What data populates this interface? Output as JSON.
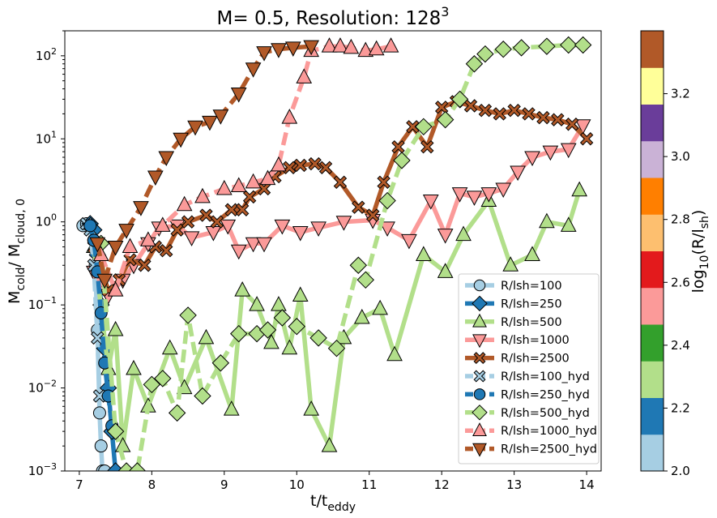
{
  "chart_data": {
    "type": "line",
    "title": {
      "base": "M= 0.5, Resolution: 128",
      "sup": "3"
    },
    "xlabel": {
      "main": "t/t",
      "sub": "eddy"
    },
    "ylabel": {
      "main": "M",
      "sub1": "cold",
      "mid": "/ M",
      "sub2": "cloud, 0"
    },
    "xlim": [
      6.8,
      14.2
    ],
    "ylim": [
      0.001,
      200
    ],
    "yscale": "log",
    "xticks": [
      "7",
      "8",
      "9",
      "10",
      "11",
      "12",
      "13",
      "14"
    ],
    "yticks": [
      {
        "value": 0.001,
        "base": "10",
        "exp": "−3"
      },
      {
        "value": 0.01,
        "base": "10",
        "exp": "−2"
      },
      {
        "value": 0.1,
        "base": "10",
        "exp": "−1"
      },
      {
        "value": 1,
        "base": "10",
        "exp": "0"
      },
      {
        "value": 10,
        "base": "10",
        "exp": "1"
      },
      {
        "value": 100,
        "base": "10",
        "exp": "2"
      }
    ],
    "legend_position": "lower-right",
    "colorbar": {
      "label": {
        "main": "log",
        "sub": "10",
        "rest": "(R/l",
        "sub2": "sh",
        "end": ")"
      },
      "range": [
        2.0,
        3.4
      ],
      "colors": [
        "#a6cee3",
        "#1f78b4",
        "#b2df8a",
        "#33a02c",
        "#fb9a99",
        "#e31a1c",
        "#fdbf6f",
        "#ff7f00",
        "#cab2d6",
        "#6a3d9a",
        "#ffff99",
        "#b15928"
      ],
      "ticks": [
        "2.0",
        "2.2",
        "2.4",
        "2.6",
        "2.8",
        "3.0",
        "3.2"
      ]
    },
    "series": [
      {
        "name": "R/lsh=100",
        "color": "#a6cee3",
        "marker": "circle",
        "dash": "solid",
        "x": [
          7.05,
          7.1,
          7.15,
          7.2,
          7.22,
          7.25,
          7.28,
          7.3,
          7.32,
          7.35
        ],
        "y": [
          0.9,
          0.95,
          0.9,
          0.6,
          0.3,
          0.05,
          0.005,
          0.002,
          0.001,
          0.001
        ]
      },
      {
        "name": "R/lsh=250",
        "color": "#1f78b4",
        "marker": "diamond",
        "dash": "solid",
        "x": [
          7.15,
          7.2,
          7.25,
          7.3,
          7.35,
          7.4,
          7.45,
          7.5
        ],
        "y": [
          0.95,
          0.8,
          0.4,
          0.1,
          0.03,
          0.01,
          0.003,
          0.001
        ]
      },
      {
        "name": "R/lsh=500",
        "color": "#b2df8a",
        "marker": "triangle-up",
        "dash": "solid",
        "x": [
          7.2,
          7.4,
          7.5,
          7.6,
          7.75,
          7.95,
          8.25,
          8.45,
          8.75,
          9.1,
          9.25,
          9.45,
          9.65,
          9.75,
          9.9,
          10.05,
          10.2,
          10.45,
          10.65,
          10.9,
          11.15,
          11.35,
          11.75,
          12.05,
          12.3,
          12.65,
          12.95,
          13.25,
          13.45,
          13.75,
          13.9
        ],
        "y": [
          0.5,
          0.017,
          0.05,
          0.002,
          0.017,
          0.006,
          0.03,
          0.01,
          0.04,
          0.0055,
          0.15,
          0.1,
          0.035,
          0.1,
          0.03,
          0.13,
          0.0055,
          0.002,
          0.04,
          0.07,
          0.09,
          0.025,
          0.4,
          0.25,
          0.7,
          1.8,
          0.3,
          0.4,
          1.0,
          0.9,
          2.4
        ]
      },
      {
        "name": "R/lsh=1000",
        "color": "#fb9a99",
        "marker": "triangle-down",
        "dash": "solid",
        "x": [
          7.2,
          7.4,
          7.6,
          7.75,
          7.95,
          8.1,
          8.35,
          8.55,
          8.85,
          9.05,
          9.2,
          9.4,
          9.55,
          9.8,
          10.05,
          10.3,
          10.65,
          11.05,
          11.25,
          11.55,
          11.85,
          12.05,
          12.25,
          12.45,
          12.65,
          12.85,
          13.05,
          13.25,
          13.5,
          13.75,
          13.95
        ],
        "y": [
          0.25,
          0.13,
          0.2,
          0.3,
          0.55,
          0.85,
          0.9,
          0.65,
          0.75,
          0.9,
          0.45,
          0.55,
          0.55,
          0.9,
          0.75,
          0.85,
          1.0,
          1.05,
          0.85,
          0.6,
          1.8,
          0.7,
          2.2,
          2.0,
          2.2,
          2.5,
          4.0,
          6.0,
          7.0,
          7.5,
          14.5
        ]
      },
      {
        "name": "R/lsh=2500",
        "color": "#b15928",
        "marker": "x",
        "dash": "solid",
        "x": [
          7.2,
          7.4,
          7.55,
          7.7,
          7.9,
          8.05,
          8.2,
          8.35,
          8.5,
          8.75,
          8.9,
          9.1,
          9.25,
          9.35,
          9.55,
          9.7,
          9.9,
          10.05,
          10.25,
          10.4,
          10.6,
          10.85,
          11.05,
          11.2,
          11.4,
          11.6,
          11.8,
          12.0,
          12.2,
          12.4,
          12.6,
          12.8,
          13.0,
          13.2,
          13.4,
          13.6,
          13.8,
          14.0
        ],
        "y": [
          0.5,
          0.15,
          0.2,
          0.35,
          0.3,
          0.5,
          0.45,
          0.8,
          1.0,
          1.2,
          1.0,
          1.4,
          1.4,
          2.0,
          2.5,
          3.5,
          4.5,
          4.8,
          5.0,
          4.5,
          3.0,
          1.5,
          1.2,
          3.0,
          8.0,
          14.0,
          8.0,
          24.0,
          28.0,
          25.0,
          22.0,
          20.0,
          22.0,
          20.0,
          18.0,
          17.0,
          15.0,
          10.0
        ]
      },
      {
        "name": "R/lsh=100_hyd",
        "color": "#a6cee3",
        "marker": "x",
        "dash": "dashed",
        "x": [
          7.1,
          7.15,
          7.2,
          7.25,
          7.28
        ],
        "y": [
          0.95,
          0.8,
          0.3,
          0.04,
          0.008
        ]
      },
      {
        "name": "R/lsh=250_hyd",
        "color": "#1f78b4",
        "marker": "circle",
        "dash": "dashed",
        "x": [
          7.15,
          7.2,
          7.25,
          7.3,
          7.35,
          7.4,
          7.45
        ],
        "y": [
          0.9,
          0.6,
          0.25,
          0.08,
          0.02,
          0.008,
          0.0035
        ]
      },
      {
        "name": "R/lsh=500_hyd",
        "color": "#b2df8a",
        "marker": "diamond",
        "dash": "dashed",
        "x": [
          7.3,
          7.5,
          7.65,
          7.8,
          8.0,
          8.15,
          8.35,
          8.5,
          8.7,
          8.95,
          9.2,
          9.45,
          9.6,
          9.8,
          10.0,
          10.3,
          10.55,
          10.85,
          10.95,
          11.25,
          11.45,
          11.75,
          12.05,
          12.25,
          12.45,
          12.6,
          12.85,
          13.1,
          13.45,
          13.75,
          13.95
        ],
        "y": [
          0.55,
          0.003,
          0.001,
          0.001,
          0.011,
          0.013,
          0.005,
          0.075,
          0.008,
          0.02,
          0.045,
          0.045,
          0.05,
          0.07,
          0.055,
          0.04,
          0.03,
          0.3,
          0.2,
          1.8,
          5.5,
          14.0,
          17.0,
          30.0,
          80.0,
          105.0,
          120.0,
          125.0,
          130.0,
          135.0,
          135.0
        ]
      },
      {
        "name": "R/lsh=1000_hyd",
        "color": "#fb9a99",
        "marker": "triangle-up",
        "dash": "dashed",
        "x": [
          7.3,
          7.5,
          7.7,
          7.95,
          8.15,
          8.45,
          8.7,
          9.0,
          9.2,
          9.4,
          9.6,
          9.75,
          9.9,
          10.1,
          10.2,
          10.45,
          10.6,
          10.75,
          10.95,
          11.1,
          11.3
        ],
        "y": [
          0.4,
          0.15,
          0.5,
          0.6,
          0.9,
          1.6,
          2.0,
          2.5,
          2.7,
          3.0,
          3.3,
          4.8,
          18.0,
          55.0,
          115.0,
          130.0,
          130.0,
          125.0,
          115.0,
          120.0,
          130.0
        ]
      },
      {
        "name": "R/lsh=2500_hyd",
        "color": "#b15928",
        "marker": "triangle-down",
        "dash": "dashed",
        "x": [
          7.25,
          7.35,
          7.5,
          7.65,
          7.85,
          8.05,
          8.2,
          8.4,
          8.6,
          8.8,
          8.95,
          9.2,
          9.4,
          9.55,
          9.75,
          9.95,
          10.2
        ],
        "y": [
          0.55,
          0.2,
          0.5,
          0.8,
          1.5,
          3.5,
          6.0,
          10.0,
          14.0,
          16.0,
          19.0,
          35.0,
          70.0,
          110.0,
          120.0,
          125.0,
          130.0
        ]
      }
    ]
  }
}
